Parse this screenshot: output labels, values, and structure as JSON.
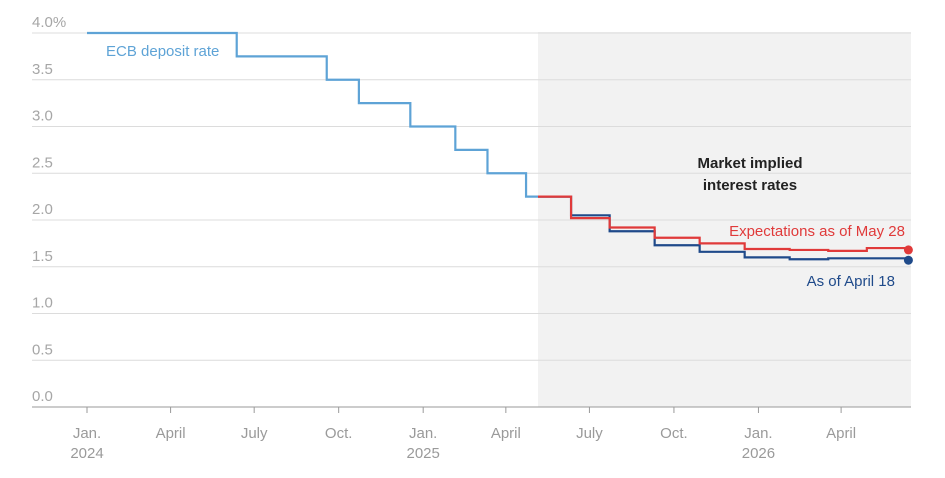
{
  "chart_data": {
    "type": "line",
    "title": "",
    "xlabel": "",
    "ylabel": "",
    "x_range": [
      "2024-01-01",
      "2026-06-15"
    ],
    "ylim": [
      0,
      4
    ],
    "y_ticks": [
      0,
      0.5,
      1,
      1.5,
      2,
      2.5,
      3,
      3.5,
      4
    ],
    "y_tick_labels": [
      "0.0",
      "0.5",
      "1.0",
      "1.5",
      "2.0",
      "2.5",
      "3.0",
      "3.5",
      "4.0%"
    ],
    "x_ticks": [
      {
        "date": "2024-01-01",
        "label": "Jan.",
        "year": "2024"
      },
      {
        "date": "2024-04-01",
        "label": "April",
        "year": ""
      },
      {
        "date": "2024-07-01",
        "label": "July",
        "year": ""
      },
      {
        "date": "2024-10-01",
        "label": "Oct.",
        "year": ""
      },
      {
        "date": "2025-01-01",
        "label": "Jan.",
        "year": "2025"
      },
      {
        "date": "2025-04-01",
        "label": "April",
        "year": ""
      },
      {
        "date": "2025-07-01",
        "label": "July",
        "year": ""
      },
      {
        "date": "2025-10-01",
        "label": "Oct.",
        "year": ""
      },
      {
        "date": "2026-01-01",
        "label": "Jan.",
        "year": "2026"
      },
      {
        "date": "2026-04-01",
        "label": "April",
        "year": ""
      }
    ],
    "grid": true,
    "shaded_region": {
      "start": "2025-05-06",
      "end": "2026-06-15",
      "label": [
        "Market implied",
        "interest rates"
      ],
      "color": "#f2f2f2"
    },
    "series": [
      {
        "name": "ECB deposit rate",
        "color": "#5ea3d6",
        "step": true,
        "points": [
          [
            "2024-01-01",
            4.0
          ],
          [
            "2024-06-12",
            3.75
          ],
          [
            "2024-09-18",
            3.5
          ],
          [
            "2024-10-23",
            3.25
          ],
          [
            "2024-12-18",
            3.0
          ],
          [
            "2025-02-05",
            2.75
          ],
          [
            "2025-03-12",
            2.5
          ],
          [
            "2025-04-23",
            2.25
          ],
          [
            "2025-05-06",
            2.25
          ]
        ]
      },
      {
        "name": "As of April 18",
        "color": "#1f4a8a",
        "step": true,
        "end_marker": true,
        "points": [
          [
            "2025-05-06",
            2.25
          ],
          [
            "2025-06-11",
            2.05
          ],
          [
            "2025-07-23",
            1.88
          ],
          [
            "2025-09-10",
            1.73
          ],
          [
            "2025-10-29",
            1.66
          ],
          [
            "2025-12-17",
            1.6
          ],
          [
            "2026-02-04",
            1.58
          ],
          [
            "2026-03-18",
            1.59
          ],
          [
            "2026-06-10",
            1.57
          ]
        ]
      },
      {
        "name": "Expectations as of May 28",
        "color": "#e03a3a",
        "step": true,
        "end_marker": true,
        "points": [
          [
            "2025-05-06",
            2.25
          ],
          [
            "2025-06-11",
            2.02
          ],
          [
            "2025-07-23",
            1.92
          ],
          [
            "2025-09-10",
            1.81
          ],
          [
            "2025-10-29",
            1.75
          ],
          [
            "2025-12-17",
            1.69
          ],
          [
            "2026-02-04",
            1.68
          ],
          [
            "2026-03-18",
            1.67
          ],
          [
            "2026-04-29",
            1.7
          ],
          [
            "2026-06-10",
            1.68
          ]
        ]
      }
    ]
  }
}
